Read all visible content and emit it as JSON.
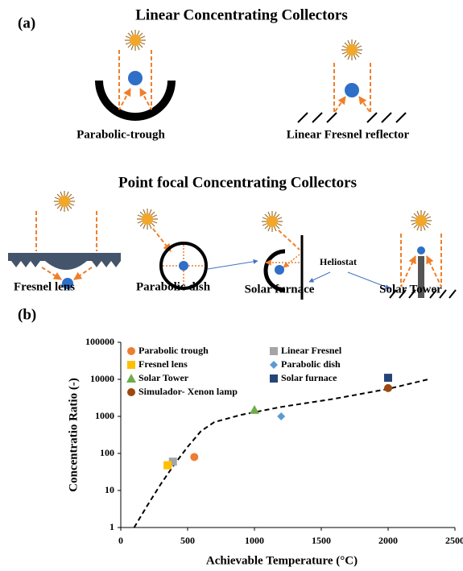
{
  "panel_a": {
    "label": "(a)",
    "title_linear": "Linear Concentrating Collectors",
    "linear": [
      "Parabolic-trough",
      "Linear Fresnel reflector"
    ],
    "title_point": "Point focal Concentrating Collectors",
    "point": [
      "Fresnel lens",
      "Parabolic dish",
      "Solar furnace",
      "Solar Tower"
    ],
    "heliostat": "Heliostat"
  },
  "chart_data": {
    "type": "scatter",
    "panel_label": "(b)",
    "xlabel": "Achievable Temperature (°C)",
    "ylabel": "Concentratio Ratio (-)",
    "xlim": [
      0,
      2500
    ],
    "xticks": [
      0,
      500,
      1000,
      1500,
      2000,
      2500
    ],
    "ylim": [
      1,
      100000
    ],
    "yticks": [
      1,
      10,
      100,
      1000,
      10000,
      100000
    ],
    "log_y": true,
    "grid": false,
    "legend": "top-left",
    "series": [
      {
        "name": "Parabolic trough",
        "color": "#ed7d31",
        "marker": "circle",
        "x": [
          550
        ],
        "values": [
          80
        ]
      },
      {
        "name": "Linear Fresnel",
        "color": "#a5a5a5",
        "marker": "square",
        "x": [
          390
        ],
        "values": [
          60
        ]
      },
      {
        "name": "Fresnel lens",
        "color": "#ffc000",
        "marker": "square",
        "x": [
          350
        ],
        "values": [
          48
        ]
      },
      {
        "name": "Parabolic dish",
        "color": "#5b9bd5",
        "marker": "diamond",
        "x": [
          1200
        ],
        "values": [
          1000
        ]
      },
      {
        "name": "Solar Tower",
        "color": "#70ad47",
        "marker": "triangle",
        "x": [
          1000
        ],
        "values": [
          1500
        ]
      },
      {
        "name": "Solar furnace",
        "color": "#264478",
        "marker": "square",
        "x": [
          2000
        ],
        "values": [
          11000
        ]
      },
      {
        "name": "Simulador- Xenon lamp",
        "color": "#9e480e",
        "marker": "circle",
        "x": [
          2000
        ],
        "values": [
          5800
        ]
      }
    ],
    "trend": {
      "color": "#000000",
      "x": [
        100,
        200,
        300,
        400,
        500,
        600,
        700,
        900,
        1200,
        1600,
        2000,
        2300
      ],
      "values": [
        1,
        4,
        15,
        50,
        150,
        400,
        700,
        1100,
        1800,
        3000,
        5500,
        10000
      ]
    }
  }
}
